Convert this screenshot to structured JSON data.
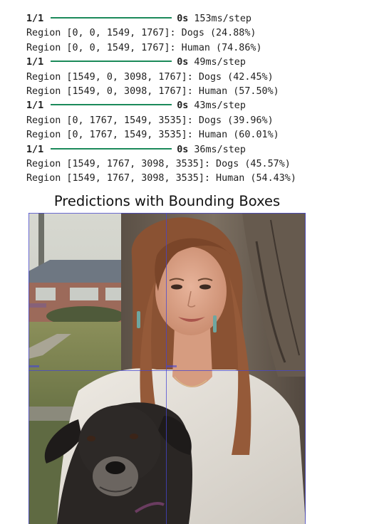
{
  "output_log": [
    {
      "type": "progress",
      "step": "1/1",
      "duration": "0s",
      "rate": "153ms/step"
    },
    {
      "type": "text",
      "text": "Region [0, 0, 1549, 1767]: Dogs (24.88%)"
    },
    {
      "type": "text",
      "text": "Region [0, 0, 1549, 1767]: Human (74.86%)"
    },
    {
      "type": "progress",
      "step": "1/1",
      "duration": "0s",
      "rate": "49ms/step"
    },
    {
      "type": "text",
      "text": "Region [1549, 0, 3098, 1767]: Dogs (42.45%)"
    },
    {
      "type": "text",
      "text": "Region [1549, 0, 3098, 1767]: Human (57.50%)"
    },
    {
      "type": "progress",
      "step": "1/1",
      "duration": "0s",
      "rate": "43ms/step"
    },
    {
      "type": "text",
      "text": "Region [0, 1767, 1549, 3535]: Dogs (39.96%)"
    },
    {
      "type": "text",
      "text": "Region [0, 1767, 1549, 3535]: Human (60.01%)"
    },
    {
      "type": "progress",
      "step": "1/1",
      "duration": "0s",
      "rate": "36ms/step"
    },
    {
      "type": "text",
      "text": "Region [1549, 1767, 3098, 3535]: Dogs (45.57%)"
    },
    {
      "type": "text",
      "text": "Region [1549, 1767, 3098, 3535]: Human (54.43%)"
    }
  ],
  "figure": {
    "title": "Predictions with Bounding Boxes",
    "image_description_icon": "photo-woman-and-dog",
    "box_color": "#4646d2",
    "progress_bar_color": "#1b8a5a"
  }
}
